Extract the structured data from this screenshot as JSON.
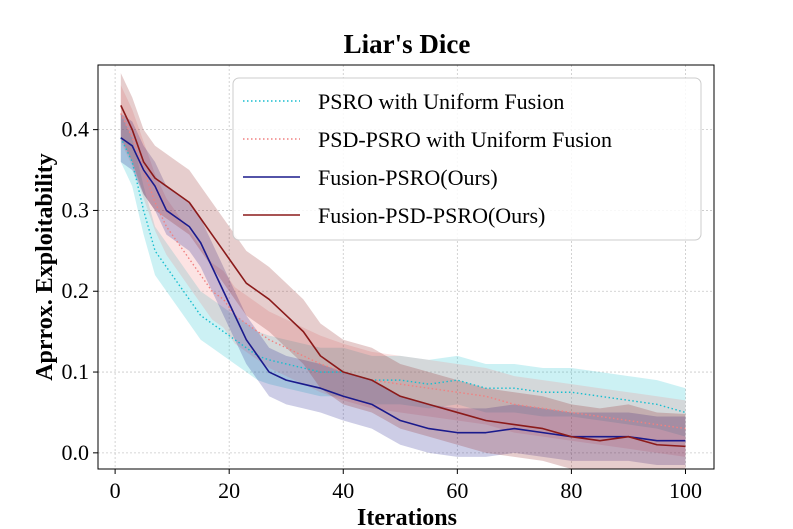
{
  "chart_data": {
    "type": "line",
    "title": "Liar's Dice",
    "xlabel": "Iterations",
    "ylabel": "Aprrox. Exploitability",
    "xlim": [
      -3,
      105
    ],
    "ylim": [
      -0.02,
      0.48
    ],
    "xticks": [
      0,
      20,
      40,
      60,
      80,
      100
    ],
    "yticks": [
      0.0,
      0.1,
      0.2,
      0.3,
      0.4
    ],
    "xtick_labels": [
      "0",
      "20",
      "40",
      "60",
      "80",
      "100"
    ],
    "ytick_labels": [
      "0.0",
      "0.1",
      "0.2",
      "0.3",
      "0.4"
    ],
    "grid": true,
    "legend_position": "top-right",
    "series": [
      {
        "name": "PSRO with Uniform Fusion",
        "color": "#17becf",
        "style": "dotted",
        "x": [
          1,
          3,
          5,
          7,
          9,
          11,
          13,
          15,
          17,
          19,
          21,
          23,
          25,
          27,
          30,
          33,
          36,
          40,
          45,
          50,
          55,
          60,
          65,
          70,
          75,
          80,
          85,
          90,
          95,
          100
        ],
        "y": [
          0.39,
          0.36,
          0.3,
          0.25,
          0.23,
          0.21,
          0.19,
          0.17,
          0.16,
          0.15,
          0.14,
          0.13,
          0.12,
          0.115,
          0.11,
          0.105,
          0.1,
          0.1,
          0.09,
          0.09,
          0.085,
          0.09,
          0.08,
          0.08,
          0.075,
          0.075,
          0.07,
          0.065,
          0.06,
          0.05
        ],
        "band": 0.03
      },
      {
        "name": "PSD-PSRO with Uniform Fusion",
        "color": "#f08080",
        "style": "dotted",
        "x": [
          1,
          3,
          5,
          7,
          9,
          11,
          13,
          15,
          17,
          19,
          21,
          23,
          25,
          27,
          30,
          33,
          36,
          40,
          45,
          50,
          55,
          60,
          65,
          70,
          75,
          80,
          85,
          90,
          95,
          100
        ],
        "y": [
          0.42,
          0.39,
          0.35,
          0.31,
          0.28,
          0.26,
          0.24,
          0.22,
          0.2,
          0.19,
          0.17,
          0.16,
          0.15,
          0.14,
          0.13,
          0.12,
          0.11,
          0.1,
          0.09,
          0.085,
          0.08,
          0.075,
          0.07,
          0.06,
          0.055,
          0.05,
          0.045,
          0.04,
          0.035,
          0.03
        ],
        "band": 0.035
      },
      {
        "name": "Fusion-PSRO(Ours)",
        "color": "#1a1a8c",
        "style": "solid",
        "x": [
          1,
          3,
          5,
          7,
          9,
          11,
          13,
          15,
          17,
          19,
          21,
          23,
          25,
          27,
          30,
          33,
          36,
          40,
          45,
          50,
          55,
          60,
          65,
          70,
          75,
          80,
          85,
          90,
          95,
          100
        ],
        "y": [
          0.39,
          0.38,
          0.35,
          0.33,
          0.3,
          0.29,
          0.28,
          0.26,
          0.23,
          0.2,
          0.17,
          0.14,
          0.12,
          0.1,
          0.09,
          0.085,
          0.08,
          0.07,
          0.06,
          0.04,
          0.03,
          0.025,
          0.025,
          0.03,
          0.025,
          0.02,
          0.02,
          0.02,
          0.015,
          0.015
        ],
        "band": 0.03
      },
      {
        "name": "Fusion-PSD-PSRO(Ours)",
        "color": "#8b1a1a",
        "style": "solid",
        "x": [
          1,
          3,
          5,
          7,
          9,
          11,
          13,
          15,
          17,
          19,
          21,
          23,
          25,
          27,
          30,
          33,
          36,
          40,
          45,
          50,
          55,
          60,
          65,
          70,
          75,
          80,
          85,
          90,
          95,
          100
        ],
        "y": [
          0.43,
          0.4,
          0.36,
          0.34,
          0.33,
          0.32,
          0.31,
          0.29,
          0.27,
          0.25,
          0.23,
          0.21,
          0.2,
          0.19,
          0.17,
          0.15,
          0.12,
          0.1,
          0.09,
          0.07,
          0.06,
          0.05,
          0.04,
          0.035,
          0.03,
          0.02,
          0.015,
          0.02,
          0.01,
          0.008
        ],
        "band": 0.04
      }
    ]
  }
}
